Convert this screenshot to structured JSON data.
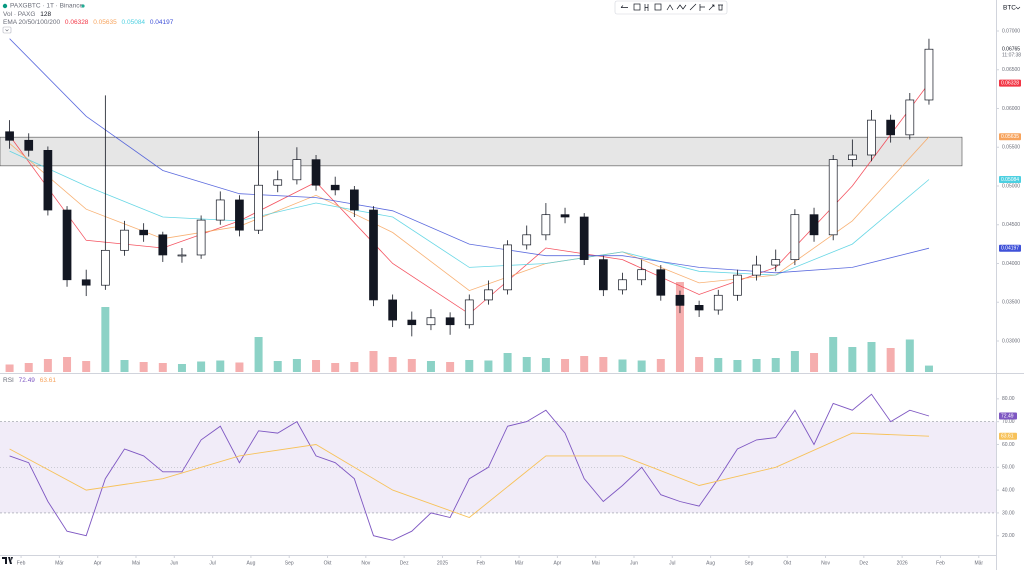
{
  "chart_data": {
    "type": "candlestick",
    "title": "PAXGBTC · 1T · Binance",
    "currency": "BTC",
    "countdown": "11:07:38",
    "xlim": [
      -0.5,
      51.5
    ],
    "xticks": [
      {
        "value": 0.6,
        "label": "Feb"
      },
      {
        "value": 2.6,
        "label": "Mär"
      },
      {
        "value": 4.6,
        "label": "Apr"
      },
      {
        "value": 6.6,
        "label": "Mai"
      },
      {
        "value": 8.6,
        "label": "Jun"
      },
      {
        "value": 10.6,
        "label": "Jul"
      },
      {
        "value": 12.6,
        "label": "Aug"
      },
      {
        "value": 14.6,
        "label": "Sep"
      },
      {
        "value": 16.6,
        "label": "Okt"
      },
      {
        "value": 18.6,
        "label": "Nov"
      },
      {
        "value": 20.6,
        "label": "Dez"
      },
      {
        "value": 22.6,
        "label": "2025"
      },
      {
        "value": 24.6,
        "label": "Feb"
      },
      {
        "value": 26.6,
        "label": "Mär"
      },
      {
        "value": 28.6,
        "label": "Apr"
      },
      {
        "value": 30.6,
        "label": "Mai"
      },
      {
        "value": 32.6,
        "label": "Jun"
      },
      {
        "value": 34.6,
        "label": "Jul"
      },
      {
        "value": 36.6,
        "label": "Aug"
      },
      {
        "value": 38.6,
        "label": "Sep"
      },
      {
        "value": 40.6,
        "label": "Okt"
      },
      {
        "value": 42.6,
        "label": "Nov"
      },
      {
        "value": 44.6,
        "label": "Dez"
      },
      {
        "value": 46.6,
        "label": "2026"
      },
      {
        "value": 48.6,
        "label": "Feb"
      },
      {
        "value": 50.6,
        "label": "Mär"
      }
    ],
    "ylim": [
      0.026,
      0.074
    ],
    "yticks": [
      {
        "value": 0.03,
        "label": "0.03000"
      },
      {
        "value": 0.035,
        "label": "0.03500"
      },
      {
        "value": 0.04,
        "label": "0.04000"
      },
      {
        "value": 0.045,
        "label": "0.04500"
      },
      {
        "value": 0.05,
        "label": "0.05000"
      },
      {
        "value": 0.055,
        "label": "0.05500"
      },
      {
        "value": 0.06,
        "label": "0.06000"
      },
      {
        "value": 0.065,
        "label": "0.06500"
      },
      {
        "value": 0.07,
        "label": "0.07000"
      }
    ],
    "zone": [
      0.0526,
      0.0563
    ],
    "zone_color": "#e6e6e6",
    "up_color": "#ffffff",
    "down_color": "#131722",
    "last_price_color": "#131722",
    "open": [
      0.057,
      0.0559,
      0.0546,
      0.0469,
      0.0379,
      0.0372,
      0.0417,
      0.0443,
      0.0437,
      0.0411,
      0.0411,
      0.0456,
      0.0482,
      0.0443,
      0.0501,
      0.0508,
      0.0534,
      0.0501,
      0.0495,
      0.0469,
      0.0353,
      0.0327,
      0.0321,
      0.033,
      0.0321,
      0.0353,
      0.0366,
      0.0424,
      0.0437,
      0.0463,
      0.046,
      0.0405,
      0.0366,
      0.0379,
      0.0392,
      0.0359,
      0.0346,
      0.034,
      0.0359,
      0.0385,
      0.0398,
      0.0405,
      0.0463,
      0.0437,
      0.0534,
      0.054,
      0.0585,
      0.0566,
      0.0611
    ],
    "high": [
      0.0585,
      0.0568,
      0.0551,
      0.0474,
      0.0392,
      0.0617,
      0.0455,
      0.0452,
      0.0441,
      0.042,
      0.0462,
      0.0493,
      0.0488,
      0.0571,
      0.052,
      0.055,
      0.054,
      0.0512,
      0.05,
      0.0474,
      0.036,
      0.0338,
      0.0341,
      0.0337,
      0.036,
      0.0378,
      0.043,
      0.0449,
      0.0478,
      0.0472,
      0.0465,
      0.041,
      0.0388,
      0.0405,
      0.0398,
      0.0365,
      0.0352,
      0.0366,
      0.0392,
      0.041,
      0.0418,
      0.047,
      0.0472,
      0.054,
      0.056,
      0.0598,
      0.0592,
      0.062,
      0.069
    ],
    "low": [
      0.0548,
      0.0538,
      0.0462,
      0.037,
      0.0358,
      0.0366,
      0.041,
      0.0428,
      0.0402,
      0.0401,
      0.0406,
      0.045,
      0.0435,
      0.0438,
      0.0492,
      0.0502,
      0.0494,
      0.0488,
      0.046,
      0.0345,
      0.0318,
      0.0306,
      0.0314,
      0.0308,
      0.0316,
      0.0347,
      0.036,
      0.0418,
      0.043,
      0.0452,
      0.0398,
      0.0358,
      0.036,
      0.0372,
      0.0352,
      0.0336,
      0.0331,
      0.0334,
      0.0352,
      0.0378,
      0.039,
      0.0398,
      0.0428,
      0.043,
      0.0525,
      0.0532,
      0.0556,
      0.056,
      0.0605
    ],
    "close": [
      0.0559,
      0.0546,
      0.0469,
      0.0379,
      0.0372,
      0.0417,
      0.0443,
      0.0437,
      0.0411,
      0.0411,
      0.0456,
      0.0482,
      0.0443,
      0.0501,
      0.0508,
      0.0534,
      0.0501,
      0.0495,
      0.0469,
      0.0353,
      0.0327,
      0.0321,
      0.033,
      0.0321,
      0.0353,
      0.0366,
      0.0424,
      0.0437,
      0.0463,
      0.046,
      0.0405,
      0.0366,
      0.0379,
      0.0392,
      0.0359,
      0.0346,
      0.034,
      0.0359,
      0.0385,
      0.0398,
      0.0405,
      0.0463,
      0.0437,
      0.0534,
      0.054,
      0.0585,
      0.0566,
      0.0611,
      0.06765
    ],
    "volume": {
      "label": "Vol · PAXG",
      "ylim": [
        0,
        2000
      ],
      "up_color": "#6fc7b8",
      "down_color": "#f39a9a",
      "values": [
        150,
        180,
        260,
        300,
        220,
        1300,
        240,
        200,
        180,
        160,
        210,
        230,
        190,
        700,
        220,
        260,
        240,
        180,
        200,
        420,
        300,
        260,
        220,
        200,
        240,
        230,
        380,
        300,
        280,
        260,
        320,
        300,
        250,
        230,
        260,
        1800,
        300,
        280,
        240,
        260,
        280,
        420,
        380,
        700,
        500,
        600,
        480,
        650,
        128
      ]
    },
    "ema": {
      "label": "EMA 20/50/100/200",
      "x": [
        0,
        4,
        8,
        12,
        16,
        20,
        24,
        28,
        32,
        36,
        40,
        44,
        48
      ],
      "series": [
        {
          "color": "#f23645",
          "values": [
            0.0565,
            0.043,
            0.042,
            0.0455,
            0.0505,
            0.04,
            0.0335,
            0.042,
            0.0405,
            0.036,
            0.0395,
            0.05,
            0.06328
          ]
        },
        {
          "color": "#f7a35c",
          "values": [
            0.0555,
            0.047,
            0.0432,
            0.0448,
            0.0488,
            0.044,
            0.0365,
            0.04,
            0.0415,
            0.0375,
            0.0385,
            0.0455,
            0.05635
          ]
        },
        {
          "color": "#4dd0e1",
          "values": [
            0.0545,
            0.05,
            0.046,
            0.0455,
            0.0478,
            0.046,
            0.0395,
            0.04,
            0.0415,
            0.039,
            0.0385,
            0.0425,
            0.05084
          ]
        },
        {
          "color": "#3f51d8",
          "values": [
            0.069,
            0.059,
            0.052,
            0.049,
            0.0485,
            0.0468,
            0.0425,
            0.041,
            0.041,
            0.0395,
            0.0388,
            0.0395,
            0.04197
          ]
        }
      ]
    },
    "rsi": {
      "label": "RSI",
      "ylim": [
        12,
        90
      ],
      "yticks": [
        {
          "value": 20,
          "label": "20.00"
        },
        {
          "value": 30,
          "label": "30.00"
        },
        {
          "value": 40,
          "label": "40.00"
        },
        {
          "value": 50,
          "label": "50.00"
        },
        {
          "value": 60,
          "label": "60.00"
        },
        {
          "value": 70,
          "label": "70.00"
        },
        {
          "value": 80,
          "label": "80.00"
        }
      ],
      "bands": [
        30,
        70
      ],
      "midline": 50,
      "band_color": "#ede7f6",
      "series": [
        {
          "color": "#7e57c2",
          "values": [
            55,
            52,
            35,
            22,
            20,
            45,
            58,
            55,
            48,
            48,
            62,
            68,
            52,
            66,
            65,
            70,
            55,
            52,
            45,
            20,
            18,
            22,
            30,
            28,
            45,
            50,
            68,
            70,
            75,
            65,
            45,
            35,
            42,
            50,
            38,
            35,
            33,
            45,
            58,
            62,
            63,
            75,
            60,
            78,
            75,
            82,
            70,
            75,
            72.49
          ]
        },
        {
          "color": "#f7c25a",
          "x": [
            0,
            4,
            8,
            12,
            16,
            20,
            24,
            28,
            32,
            36,
            40,
            44,
            48
          ],
          "values": [
            58,
            40,
            45,
            55,
            60,
            40,
            28,
            55,
            55,
            42,
            50,
            65,
            63.61
          ]
        }
      ]
    }
  }
}
